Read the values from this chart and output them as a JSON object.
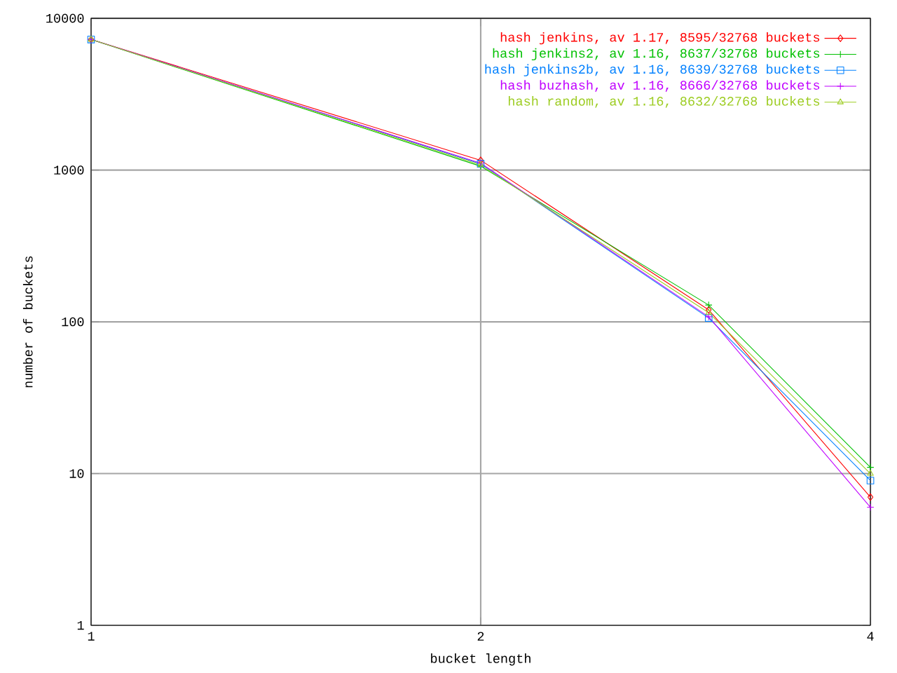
{
  "chart_data": {
    "type": "line",
    "xlabel": "bucket length",
    "ylabel": "number of buckets",
    "x": [
      1,
      2,
      3,
      4
    ],
    "series": [
      {
        "name": "hash jenkins, av 1.17, 8595/32768 buckets",
        "color": "#ff0000",
        "marker": "diamond",
        "values": [
          7250,
          1160,
          120,
          7
        ]
      },
      {
        "name": "hash jenkins2, av 1.16, 8637/32768 buckets",
        "color": "#00c000",
        "marker": "cross",
        "values": [
          7250,
          1060,
          129,
          11
        ]
      },
      {
        "name": "hash jenkins2b, av 1.16, 8639/32768 buckets",
        "color": "#0080ff",
        "marker": "square",
        "values": [
          7250,
          1100,
          106,
          9
        ]
      },
      {
        "name": "hash buzhash, av 1.16, 8666/32768 buckets",
        "color": "#c000ff",
        "marker": "cross",
        "values": [
          7250,
          1110,
          108,
          6
        ]
      },
      {
        "name": "hash random, av 1.16, 8632/32768 buckets",
        "color": "#9ccc20",
        "marker": "triangle",
        "values": [
          7250,
          1080,
          115,
          10
        ]
      }
    ],
    "log": "xy",
    "xlim": [
      1,
      4
    ],
    "ylim": [
      1,
      10000
    ],
    "xticks": [
      1,
      2,
      4
    ],
    "yticks": [
      1,
      10,
      100,
      1000,
      10000
    ],
    "grid": true,
    "legend": "top right",
    "line_style": "solid"
  }
}
